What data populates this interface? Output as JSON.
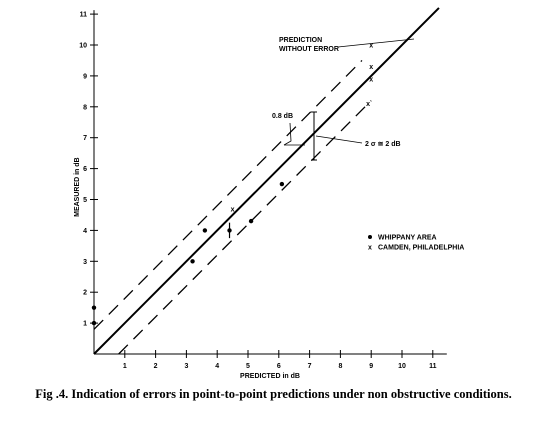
{
  "chart_data": {
    "type": "scatter",
    "xlabel": "PREDICTED in dB",
    "ylabel": "MEASURED in dB",
    "xlim": [
      0,
      11
    ],
    "ylim": [
      0,
      11
    ],
    "x_ticks": [
      "1",
      "2",
      "3",
      "4",
      "5",
      "6",
      "7",
      "8",
      "9",
      "10",
      "11"
    ],
    "y_ticks": [
      "1",
      "2",
      "3",
      "4",
      "5",
      "6",
      "7",
      "8",
      "9",
      "10",
      "11"
    ],
    "lines": [
      {
        "label": "PREDICTION WITHOUT ERROR",
        "style": "solid",
        "offset_db": 0
      },
      {
        "style": "dashed",
        "offset_db": 0.8
      },
      {
        "style": "dashed",
        "offset_db": -0.8
      }
    ],
    "series": [
      {
        "name": "WHIPPANY AREA",
        "marker": "•",
        "points": [
          [
            0,
            1.5
          ],
          [
            0,
            1.0
          ],
          [
            3.2,
            3.0
          ],
          [
            3.6,
            4.0
          ],
          [
            4.4,
            4.0
          ],
          [
            5.1,
            4.3
          ],
          [
            6.1,
            5.5
          ]
        ]
      },
      {
        "name": "CAMDEN, PHILADELPHIA",
        "marker": "x",
        "points": [
          [
            4.5,
            4.7
          ],
          [
            9.0,
            10.0
          ],
          [
            9.0,
            9.3
          ],
          [
            9.0,
            8.9
          ],
          [
            8.9,
            8.1
          ]
        ]
      }
    ],
    "annotations": {
      "prediction_line": [
        "PREDICTION",
        "WITHOUT ERROR"
      ],
      "band_width": "0.8 dB",
      "sigma": "2 σ ≅ 2 dB"
    }
  },
  "caption": "Fig .4. Indication of errors in point-to-point predictions under non obstructive conditions."
}
